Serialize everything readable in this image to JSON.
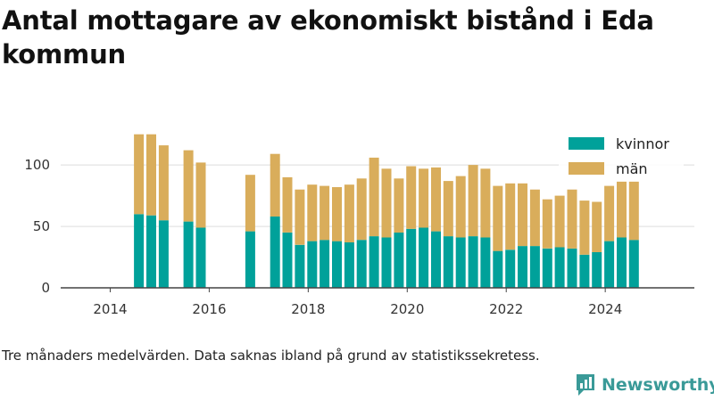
{
  "title": "Antal mottagare av ekonomiskt bistånd i Eda kommun",
  "footnote": "Tre månaders medelvärden. Data saknas ibland på grund av statistikssekretess.",
  "brand": {
    "name": "Newsworthy",
    "icon": "newsworthy-logo-icon",
    "color": "#3a9a98"
  },
  "colors": {
    "kvinnor": "#00a19a",
    "man": "#d9ad5b",
    "grid": "#dddddd",
    "axis": "#444444"
  },
  "chart_data": {
    "type": "bar",
    "stacked": true,
    "xlim": [
      2013.0,
      2025.8
    ],
    "ylim": [
      0,
      140
    ],
    "xticks": [
      2014,
      2016,
      2018,
      2020,
      2022,
      2024
    ],
    "xtick_labels": [
      "2014",
      "2016",
      "2018",
      "2020",
      "2022",
      "2024"
    ],
    "yticks": [
      0,
      50,
      100
    ],
    "ytick_labels": [
      "0",
      "50",
      "100"
    ],
    "grid": true,
    "legend_position": "top-right",
    "x": [
      2014.58,
      2014.83,
      2015.08,
      2015.58,
      2015.83,
      2016.83,
      2017.33,
      2017.58,
      2017.83,
      2018.08,
      2018.33,
      2018.58,
      2018.83,
      2019.08,
      2019.33,
      2019.58,
      2019.83,
      2020.08,
      2020.33,
      2020.58,
      2020.83,
      2021.08,
      2021.33,
      2021.58,
      2021.83,
      2022.08,
      2022.33,
      2022.58,
      2022.83,
      2023.08,
      2023.33,
      2023.58,
      2023.83,
      2024.08,
      2024.33,
      2024.58
    ],
    "series": [
      {
        "name": "kvinnor",
        "color": "#00a19a",
        "values": [
          60,
          59,
          55,
          54,
          49,
          46,
          58,
          45,
          35,
          38,
          39,
          38,
          37,
          39,
          42,
          41,
          45,
          48,
          49,
          46,
          42,
          41,
          42,
          41,
          30,
          31,
          34,
          34,
          32,
          33,
          32,
          27,
          29,
          38,
          41,
          39
        ]
      },
      {
        "name": "män",
        "color": "#d9ad5b",
        "values": [
          65,
          66,
          61,
          58,
          53,
          46,
          51,
          45,
          45,
          46,
          44,
          44,
          47,
          50,
          64,
          56,
          44,
          51,
          48,
          52,
          45,
          50,
          58,
          56,
          53,
          54,
          51,
          46,
          40,
          42,
          48,
          44,
          41,
          45,
          46,
          48
        ]
      }
    ]
  }
}
